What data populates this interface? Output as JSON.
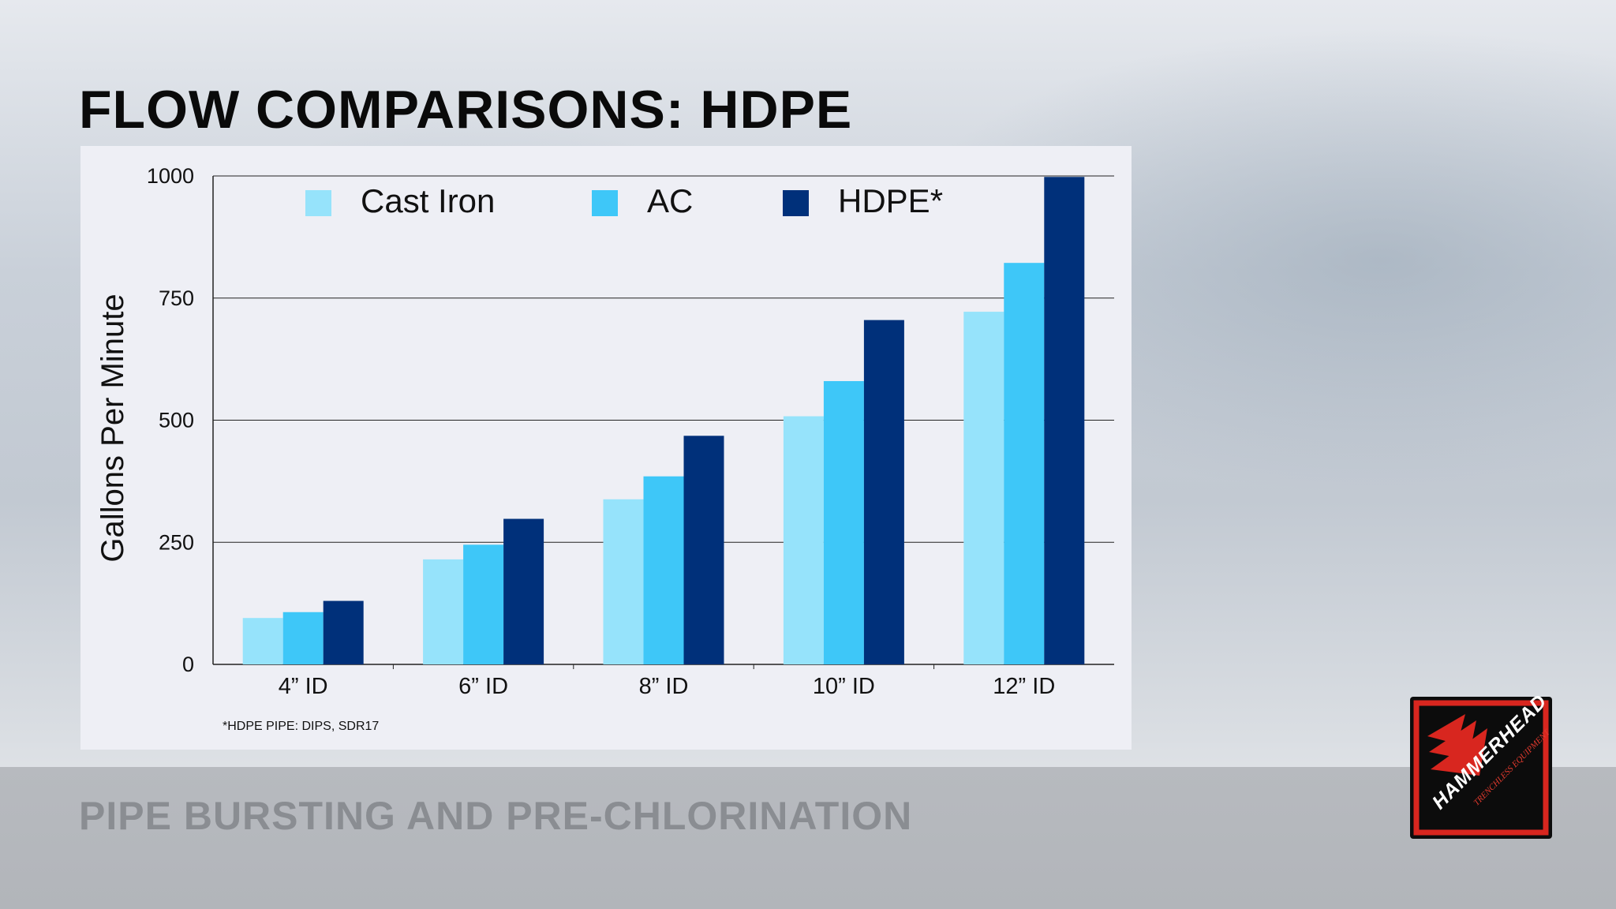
{
  "slide": {
    "title": "FLOW COMPARISONS: HDPE",
    "footer": "PIPE BURSTING AND PRE-CHLORINATION"
  },
  "logo": {
    "text": "HAMMERHEAD",
    "subtext": "TRENCHLESS EQUIPMENT",
    "colors": {
      "background": "#0c0c0c",
      "border": "#d8261f"
    }
  },
  "chart_data": {
    "type": "bar",
    "title": "",
    "xlabel": "",
    "ylabel": "Gallons Per Minute",
    "ylim": [
      0,
      1000
    ],
    "yticks": [
      0,
      250,
      500,
      750,
      1000
    ],
    "grid": true,
    "legend_position": "top",
    "categories": [
      "4” ID",
      "6” ID",
      "8” ID",
      "10” ID",
      "12” ID"
    ],
    "series": [
      {
        "name": "Cast Iron",
        "color": "#96e3fb",
        "values": [
          95,
          215,
          338,
          508,
          722
        ]
      },
      {
        "name": "AC",
        "color": "#3ec7f8",
        "values": [
          107,
          245,
          385,
          580,
          822
        ]
      },
      {
        "name": "HDPE*",
        "color": "#00307a",
        "values": [
          130,
          298,
          468,
          705,
          998
        ]
      }
    ],
    "footnote": "*HDPE PIPE: DIPS, SDR17"
  }
}
